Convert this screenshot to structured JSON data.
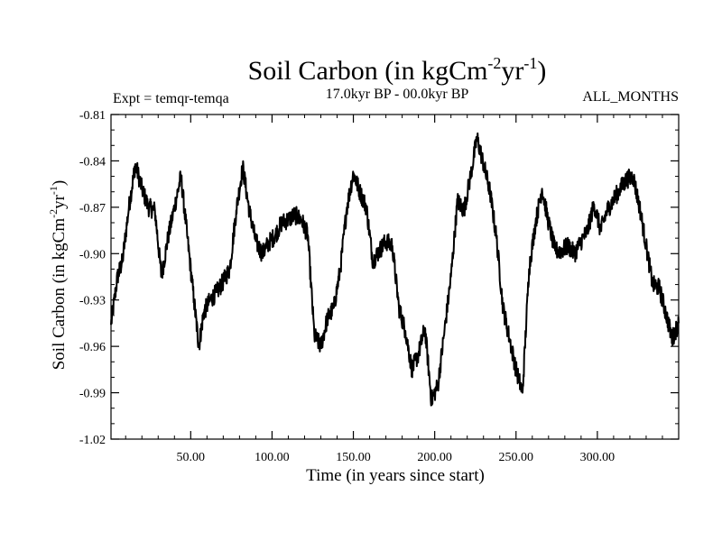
{
  "chart_data": {
    "type": "line",
    "title": {
      "main": "Soil Carbon (in kgCm",
      "sup1": "-2",
      "mid": "yr",
      "sup2": "-1",
      "end": ")"
    },
    "subtitle_left": "Expt = temqr-temqa",
    "subtitle_center": "17.0kyr BP - 00.0kyr BP",
    "subtitle_right": "ALL_MONTHS",
    "xlabel": "Time (in years since start)",
    "ylabel": {
      "main": "Soil Carbon (in kgCm",
      "sup1": "-2",
      "mid": "yr",
      "sup2": "-1",
      "end": ")"
    },
    "xlim": [
      1,
      350
    ],
    "ylim": [
      -1.02,
      -0.81
    ],
    "x_ticks": [
      50,
      100,
      150,
      200,
      250,
      300
    ],
    "x_tick_labels": [
      "50.00",
      "100.00",
      "150.00",
      "200.00",
      "250.00",
      "300.00"
    ],
    "y_ticks": [
      -1.02,
      -0.99,
      -0.96,
      -0.93,
      -0.9,
      -0.87,
      -0.84,
      -0.81
    ],
    "y_tick_labels": [
      "-1.02",
      "-0.99",
      "-0.96",
      "-0.93",
      "-0.90",
      "-0.87",
      "-0.84",
      "-0.81"
    ],
    "series": [
      {
        "name": "Soil Carbon",
        "color": "#000000",
        "x": [
          1,
          5,
          8,
          12,
          16,
          20,
          24,
          28,
          32,
          36,
          40,
          44,
          48,
          52,
          55,
          58,
          62,
          66,
          70,
          74,
          78,
          82,
          86,
          90,
          94,
          98,
          102,
          106,
          110,
          114,
          118,
          122,
          126,
          130,
          134,
          138,
          142,
          146,
          150,
          154,
          158,
          162,
          166,
          170,
          174,
          178,
          182,
          186,
          190,
          194,
          198,
          202,
          206,
          210,
          214,
          218,
          222,
          226,
          230,
          234,
          238,
          242,
          246,
          250,
          254,
          258,
          262,
          266,
          270,
          274,
          278,
          282,
          286,
          290,
          294,
          298,
          302,
          306,
          310,
          314,
          318,
          322,
          326,
          330,
          334,
          338,
          342,
          346,
          350
        ],
        "values": [
          -0.946,
          -0.915,
          -0.905,
          -0.87,
          -0.842,
          -0.858,
          -0.87,
          -0.872,
          -0.915,
          -0.89,
          -0.87,
          -0.85,
          -0.89,
          -0.93,
          -0.96,
          -0.938,
          -0.93,
          -0.925,
          -0.918,
          -0.91,
          -0.872,
          -0.844,
          -0.872,
          -0.892,
          -0.9,
          -0.893,
          -0.888,
          -0.88,
          -0.878,
          -0.875,
          -0.878,
          -0.888,
          -0.953,
          -0.96,
          -0.942,
          -0.935,
          -0.91,
          -0.87,
          -0.848,
          -0.86,
          -0.87,
          -0.905,
          -0.898,
          -0.892,
          -0.895,
          -0.935,
          -0.95,
          -0.975,
          -0.965,
          -0.948,
          -0.995,
          -0.985,
          -0.95,
          -0.915,
          -0.866,
          -0.872,
          -0.85,
          -0.825,
          -0.842,
          -0.86,
          -0.89,
          -0.935,
          -0.955,
          -0.975,
          -0.99,
          -0.91,
          -0.88,
          -0.858,
          -0.88,
          -0.898,
          -0.898,
          -0.895,
          -0.9,
          -0.892,
          -0.885,
          -0.868,
          -0.885,
          -0.872,
          -0.865,
          -0.858,
          -0.852,
          -0.85,
          -0.87,
          -0.895,
          -0.92,
          -0.922,
          -0.938,
          -0.955,
          -0.945
        ]
      }
    ]
  }
}
